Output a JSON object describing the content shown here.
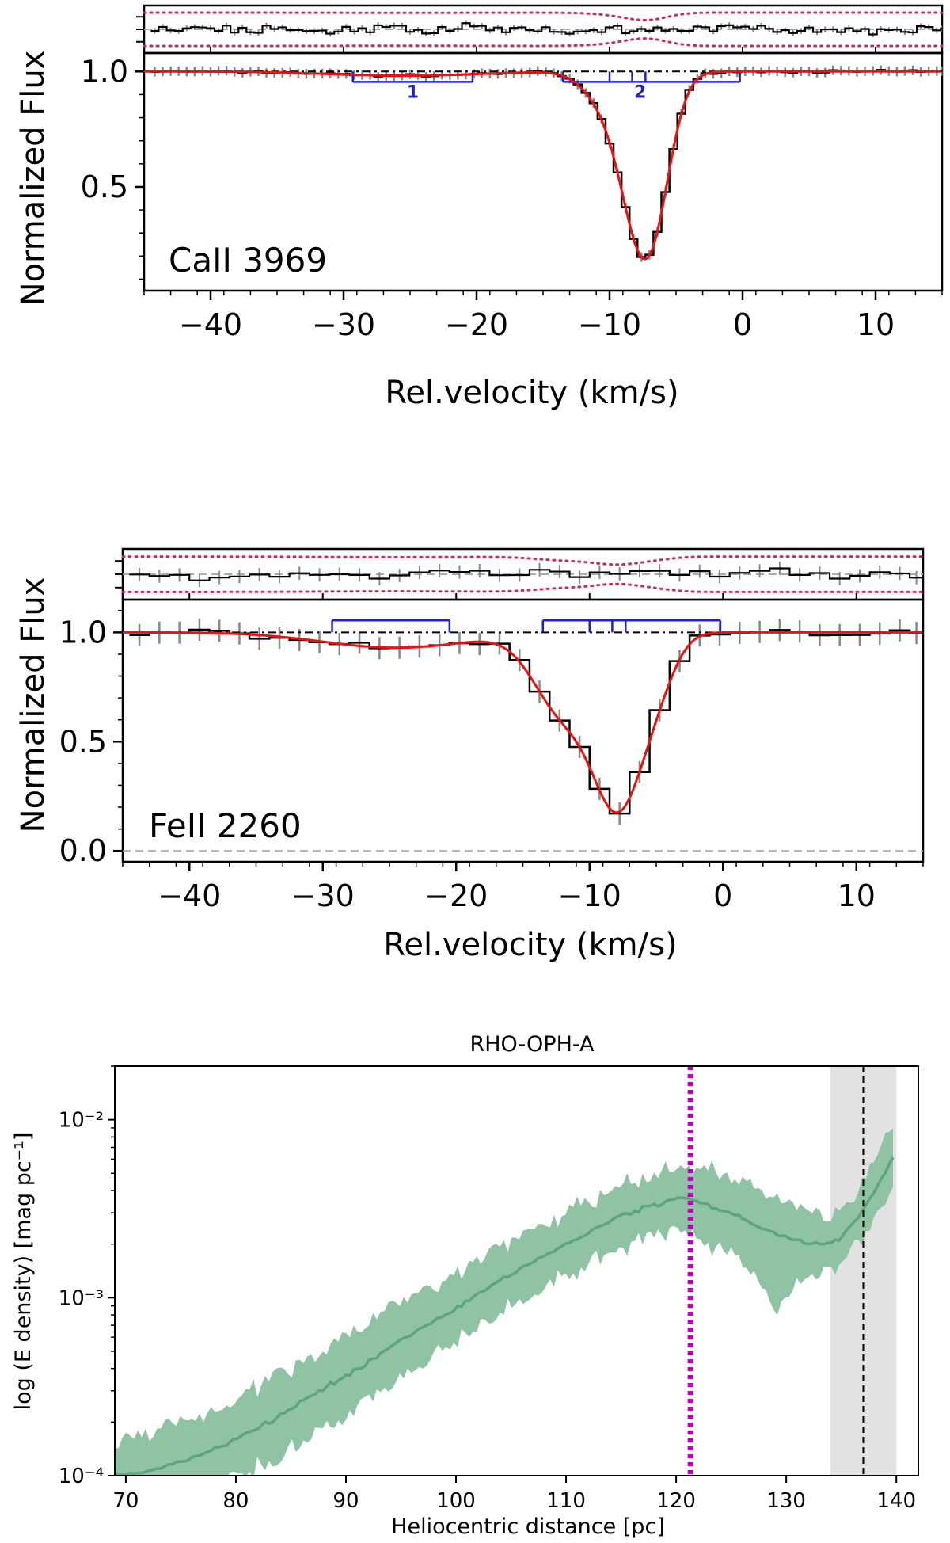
{
  "chart_data": [
    {
      "type": "line",
      "panel_label": "CaII 3969",
      "xlabel": "Rel.velocity (km/s)",
      "ylabel": "Normalized Flux",
      "xlim": [
        -45,
        15
      ],
      "ylim": [
        0.05,
        1.08
      ],
      "x_ticks": [
        -40,
        -30,
        -20,
        -10,
        0,
        10
      ],
      "y_ticks": [
        0.5,
        1.0
      ],
      "x_tick_labels": [
        "−40",
        "−30",
        "−20",
        "−10",
        "0",
        "10"
      ],
      "y_tick_labels": [
        "0.5",
        "1.0"
      ],
      "continuum_level": 1.0,
      "model_components": [
        {
          "center": -25.5,
          "depth": 0.018,
          "sigma": 5.5
        },
        {
          "center": -10.5,
          "depth": 0.1,
          "sigma": 1.6
        },
        {
          "center": -7.5,
          "depth": 0.72,
          "sigma": 1.6
        },
        {
          "center": -6.3,
          "depth": 0.12,
          "sigma": 1.2
        }
      ],
      "component_markers": [
        {
          "label": "1",
          "y": 0.955,
          "ticks": [
            -29.3,
            -20.3
          ]
        },
        {
          "label": "2",
          "y": 0.955,
          "ticks": [
            -13.5,
            -10,
            -8.3,
            -7.3,
            -0.2
          ]
        }
      ],
      "residual_panel": {
        "band_half_width": 0.55
      }
    },
    {
      "type": "line",
      "panel_label": "FeII 2260",
      "xlabel": "Rel.velocity (km/s)",
      "ylabel": "Normalized Flux",
      "xlim": [
        -45,
        15
      ],
      "ylim": [
        -0.05,
        1.15
      ],
      "x_ticks": [
        -40,
        -30,
        -20,
        -10,
        0,
        10
      ],
      "y_ticks": [
        0.0,
        0.5,
        1.0
      ],
      "x_tick_labels": [
        "−40",
        "−30",
        "−20",
        "−10",
        "0",
        "10"
      ],
      "y_tick_labels": [
        "0.0",
        "0.5",
        "1.0"
      ],
      "continuum_level": 1.0,
      "model_components": [
        {
          "center": -24.5,
          "depth": 0.07,
          "sigma": 5.5
        },
        {
          "center": -12.0,
          "depth": 0.35,
          "sigma": 2.2
        },
        {
          "center": -7.8,
          "depth": 0.75,
          "sigma": 1.9
        },
        {
          "center": -4.8,
          "depth": 0.15,
          "sigma": 1.4
        }
      ],
      "component_markers": [
        {
          "label": "",
          "y": 1.055,
          "ticks": [
            -29.3,
            -20.5
          ]
        },
        {
          "label": "",
          "y": 1.055,
          "ticks": [
            -13.5,
            -10,
            -8.3,
            -7.3,
            -0.2
          ]
        }
      ],
      "residual_panel": {
        "band_half_width": 0.55
      }
    },
    {
      "type": "area",
      "title": "RHO-OPH-A",
      "xlabel": "Heliocentric distance [pc]",
      "ylabel": "log (E density) [mag pc⁻¹]",
      "xlim": [
        69,
        142
      ],
      "ylim": [
        0.0001,
        0.02
      ],
      "y_scale": "log",
      "x_ticks": [
        70,
        80,
        90,
        100,
        110,
        120,
        130,
        140
      ],
      "y_ticks": [
        0.0001,
        0.001,
        0.01
      ],
      "y_tick_labels": [
        "10⁻⁴",
        "10⁻³",
        "10⁻²"
      ],
      "series": [
        {
          "x": [
            69,
            72,
            75,
            78,
            80,
            83,
            86,
            88,
            90,
            93,
            95,
            97,
            100,
            103,
            105,
            108,
            110,
            113,
            115,
            118,
            120,
            121.3,
            123,
            125,
            127,
            129,
            131,
            133,
            134,
            135,
            136,
            137,
            138,
            139,
            140
          ],
          "median": [
            0.0001,
            0.000105,
            0.00012,
            0.00014,
            0.00016,
            0.0002,
            0.00026,
            0.00031,
            0.00036,
            0.00048,
            0.00058,
            0.00068,
            0.00087,
            0.00115,
            0.00135,
            0.0017,
            0.002,
            0.0025,
            0.0029,
            0.0033,
            0.0036,
            0.0036,
            0.0033,
            0.003,
            0.0026,
            0.0023,
            0.0021,
            0.002,
            0.002,
            0.0022,
            0.0026,
            0.0031,
            0.004,
            0.0051,
            0.0065
          ],
          "lower": [
            7e-05,
            7e-05,
            8e-05,
            9e-05,
            0.0001,
            0.00012,
            0.00015,
            0.00018,
            0.00021,
            0.0003,
            0.00036,
            0.00042,
            0.00055,
            0.00075,
            0.0009,
            0.0011,
            0.00135,
            0.0017,
            0.0019,
            0.0022,
            0.0024,
            0.0023,
            0.002,
            0.0018,
            0.0015,
            0.00085,
            0.0013,
            0.0014,
            0.0014,
            0.0016,
            0.0019,
            0.0022,
            0.0028,
            0.0035,
            0.0045
          ],
          "upper": [
            0.00016,
            0.00018,
            0.0002,
            0.00023,
            0.00027,
            0.00034,
            0.00044,
            0.00052,
            0.00062,
            0.0008,
            0.00095,
            0.0011,
            0.0014,
            0.0018,
            0.0021,
            0.0026,
            0.003,
            0.0036,
            0.0043,
            0.005,
            0.0055,
            0.0053,
            0.0052,
            0.0047,
            0.004,
            0.0035,
            0.0031,
            0.0029,
            0.0028,
            0.0031,
            0.0036,
            0.0044,
            0.006,
            0.008,
            0.0095
          ]
        }
      ],
      "vertical_lines": [
        {
          "x": 121.3,
          "style": "dotted",
          "color": "#c000c0"
        },
        {
          "x": 137,
          "style": "dashed",
          "color": "#000000"
        }
      ],
      "shaded_region": [
        134,
        140
      ],
      "colors": {
        "fill": "#8fc3a3",
        "line": "#5da57d",
        "shade": "#e2e2e2"
      }
    }
  ]
}
